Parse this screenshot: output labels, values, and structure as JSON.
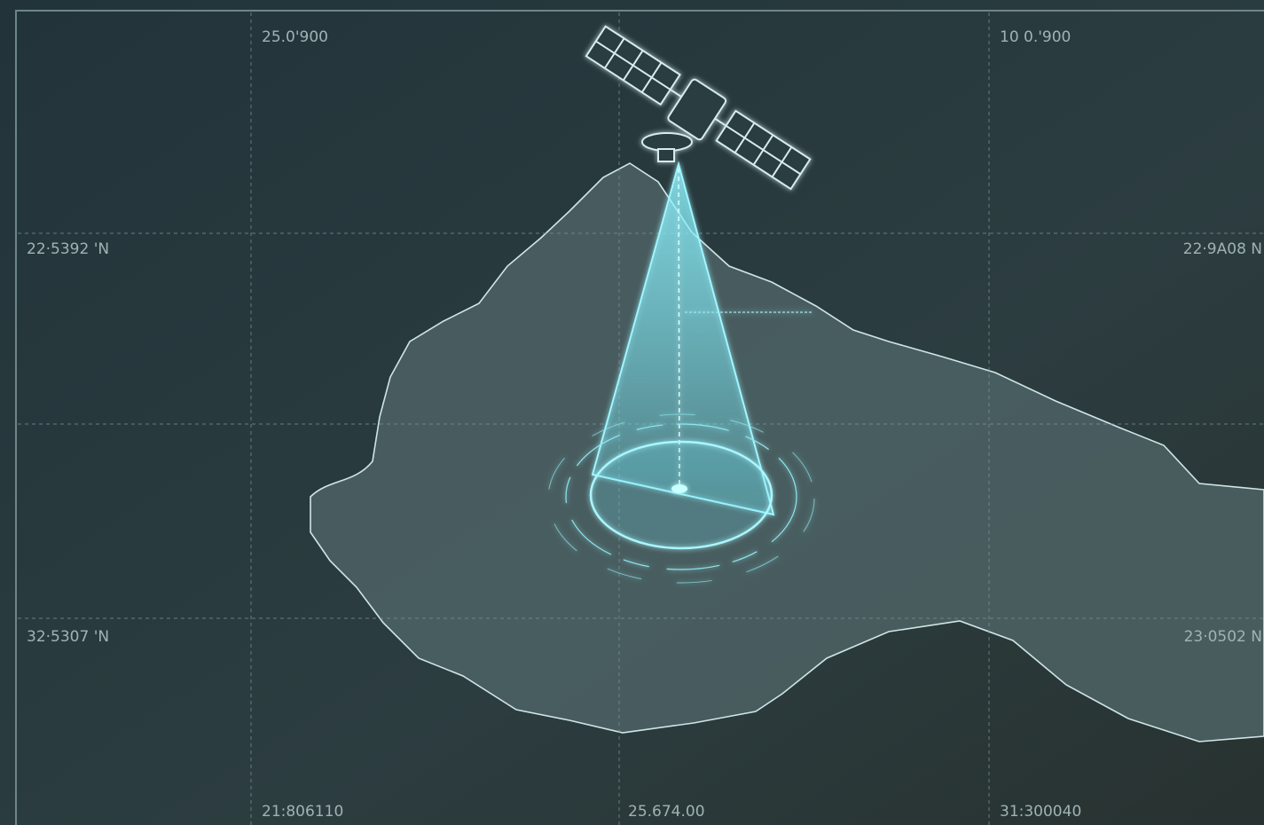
{
  "grid_labels": {
    "top": [
      "25.0'900",
      "10 0.'900"
    ],
    "left": [
      "22·5392 'N",
      "32·5307 'N"
    ],
    "right": [
      "22·9A08 N",
      "23·0502 N"
    ],
    "bottom": [
      "21:806110",
      "25.674.00",
      "31:300040"
    ]
  }
}
